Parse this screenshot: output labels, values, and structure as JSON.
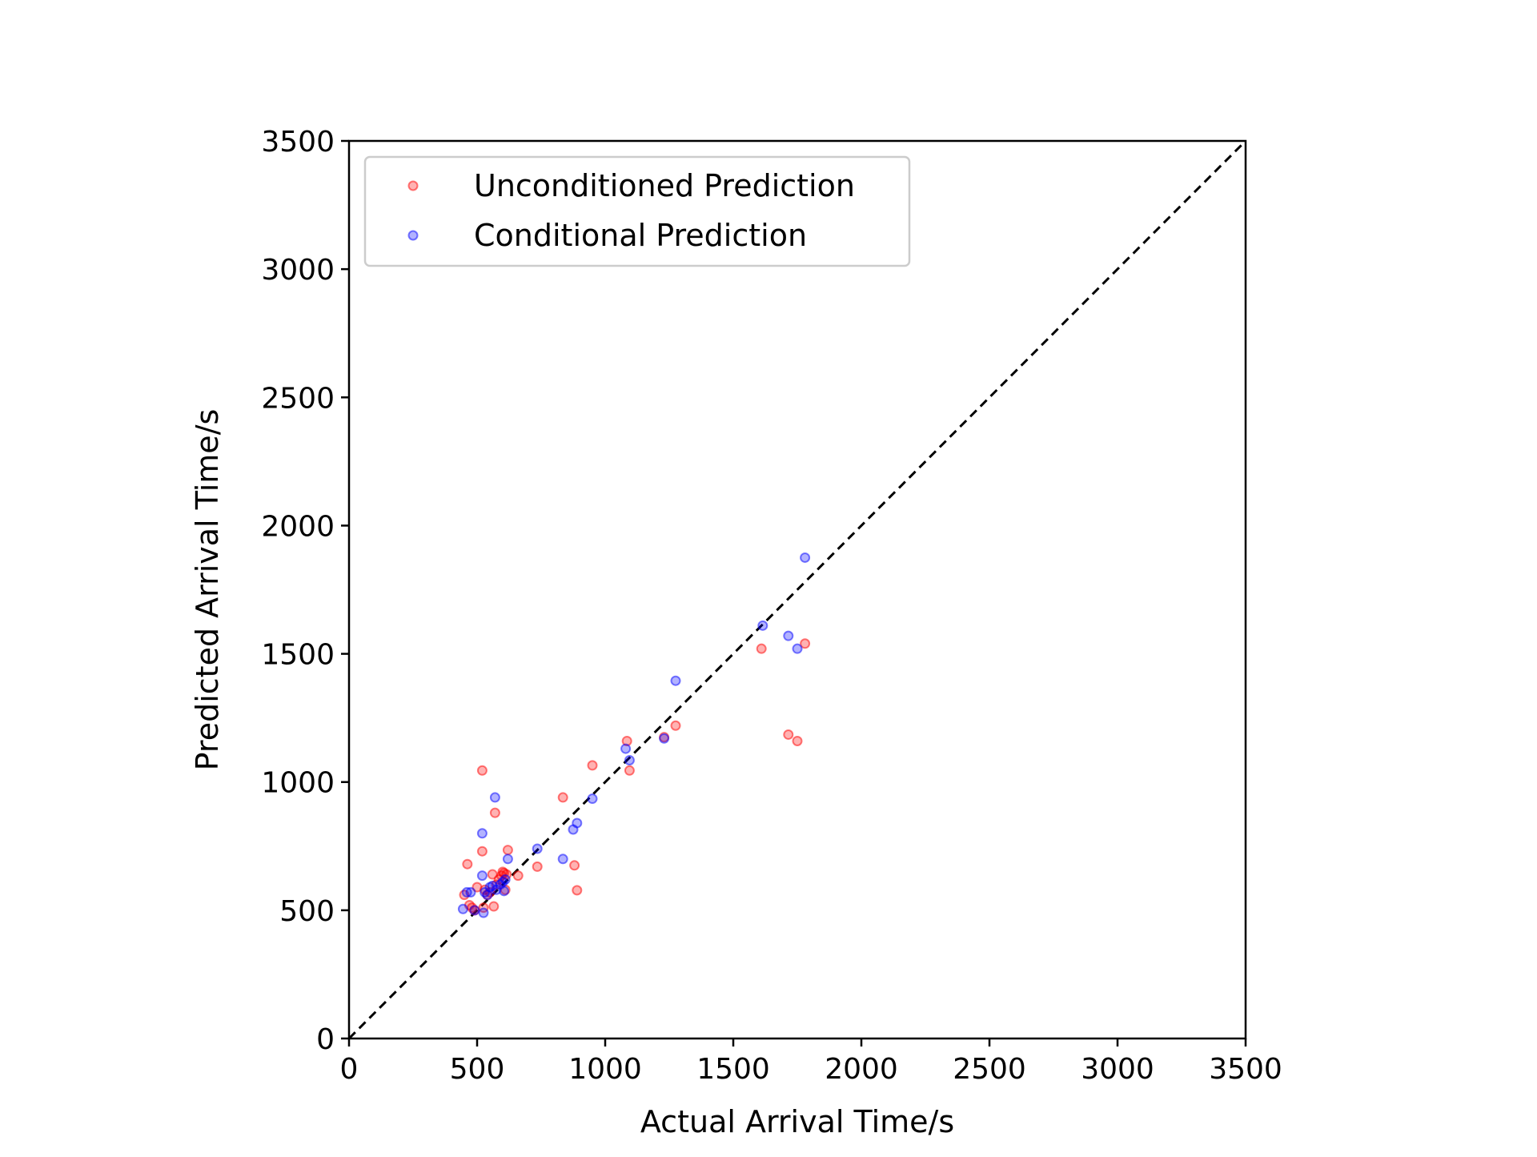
{
  "chart_data": {
    "type": "scatter",
    "xlabel": "Actual Arrival Time/s",
    "ylabel": "Predicted Arrival Time/s",
    "xlim": [
      0,
      3500
    ],
    "ylim": [
      0,
      3500
    ],
    "xticks": [
      0,
      500,
      1000,
      1500,
      2000,
      2500,
      3000,
      3500
    ],
    "yticks": [
      0,
      500,
      1000,
      1500,
      2000,
      2500,
      3000,
      3500
    ],
    "grid": false,
    "legend_position": "top-left",
    "reference_line": {
      "style": "dashed",
      "color": "#000000",
      "from": [
        0,
        0
      ],
      "to": [
        3500,
        3500
      ]
    },
    "series": [
      {
        "name": "Unconditioned Prediction",
        "color": "#ff0000",
        "points": [
          [
            450,
            560
          ],
          [
            462,
            680
          ],
          [
            470,
            520
          ],
          [
            480,
            510
          ],
          [
            490,
            500
          ],
          [
            500,
            590
          ],
          [
            520,
            1045
          ],
          [
            520,
            730
          ],
          [
            525,
            510
          ],
          [
            530,
            580
          ],
          [
            540,
            560
          ],
          [
            550,
            570
          ],
          [
            560,
            640
          ],
          [
            565,
            515
          ],
          [
            570,
            880
          ],
          [
            575,
            600
          ],
          [
            585,
            620
          ],
          [
            595,
            635
          ],
          [
            600,
            650
          ],
          [
            605,
            645
          ],
          [
            610,
            580
          ],
          [
            615,
            640
          ],
          [
            620,
            735
          ],
          [
            660,
            635
          ],
          [
            735,
            670
          ],
          [
            835,
            940
          ],
          [
            880,
            675
          ],
          [
            890,
            578
          ],
          [
            950,
            1065
          ],
          [
            1085,
            1160
          ],
          [
            1095,
            1045
          ],
          [
            1230,
            1175
          ],
          [
            1275,
            1220
          ],
          [
            1610,
            1520
          ],
          [
            1715,
            1185
          ],
          [
            1750,
            1160
          ],
          [
            1780,
            1540
          ]
        ]
      },
      {
        "name": "Conditional Prediction",
        "color": "#0000ff",
        "points": [
          [
            445,
            505
          ],
          [
            460,
            570
          ],
          [
            475,
            570
          ],
          [
            490,
            500
          ],
          [
            520,
            800
          ],
          [
            520,
            635
          ],
          [
            525,
            490
          ],
          [
            530,
            570
          ],
          [
            540,
            560
          ],
          [
            550,
            590
          ],
          [
            560,
            595
          ],
          [
            570,
            940
          ],
          [
            575,
            580
          ],
          [
            590,
            600
          ],
          [
            600,
            610
          ],
          [
            605,
            575
          ],
          [
            610,
            620
          ],
          [
            620,
            700
          ],
          [
            735,
            740
          ],
          [
            835,
            700
          ],
          [
            875,
            815
          ],
          [
            890,
            840
          ],
          [
            950,
            935
          ],
          [
            1080,
            1130
          ],
          [
            1095,
            1085
          ],
          [
            1230,
            1170
          ],
          [
            1275,
            1395
          ],
          [
            1615,
            1610
          ],
          [
            1715,
            1570
          ],
          [
            1750,
            1520
          ],
          [
            1780,
            1875
          ]
        ]
      }
    ]
  }
}
